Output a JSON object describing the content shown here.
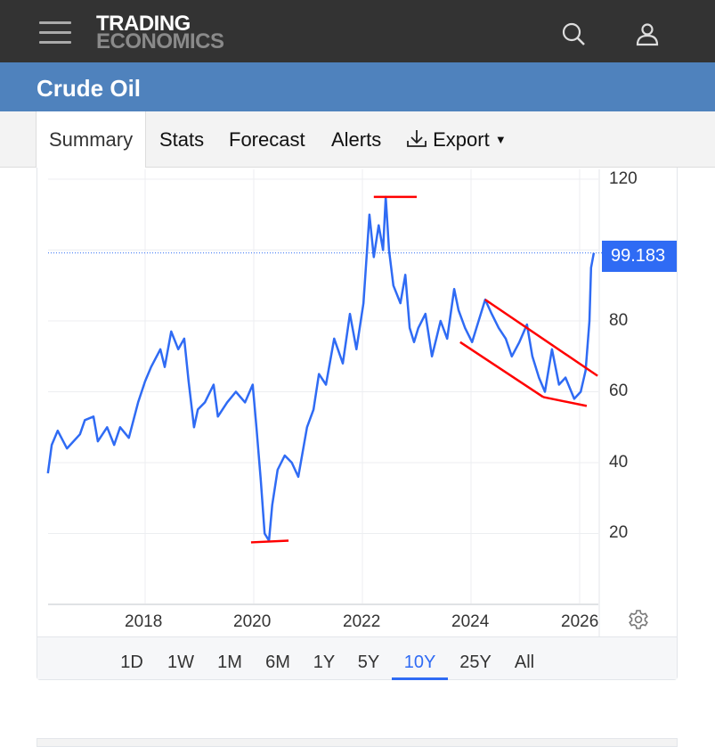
{
  "header": {
    "logo_line1": "TRADING",
    "logo_line2": "ECONOMICS",
    "menu_icon": "hamburger-icon",
    "search_icon": "search-icon",
    "user_icon": "user-icon"
  },
  "title": "Crude Oil",
  "tabs": [
    {
      "label": "Summary",
      "active": true
    },
    {
      "label": "Stats"
    },
    {
      "label": "Forecast"
    },
    {
      "label": "Alerts"
    },
    {
      "label": "Export",
      "icon": "download-icon"
    }
  ],
  "ranges": [
    "1D",
    "1W",
    "1M",
    "6M",
    "1Y",
    "5Y",
    "10Y",
    "25Y",
    "All"
  ],
  "active_range": "10Y",
  "colors": {
    "line": "#2f6bf4",
    "trend": "#ff0000",
    "header": "#333333",
    "titlebar": "#4f82bd"
  },
  "chart_data": {
    "type": "line",
    "title": "Crude Oil",
    "current_value": "99.183",
    "ylim": [
      0,
      120
    ],
    "yticks": [
      "20",
      "40",
      "60",
      "80",
      "100",
      "120"
    ],
    "xticks": [
      "2018",
      "2020",
      "2022",
      "2024",
      "2026"
    ],
    "xlim": [
      2016.21,
      2026.35
    ],
    "grid": true,
    "series": [
      {
        "name": "Crude Oil",
        "points": [
          [
            2016.21,
            37
          ],
          [
            2016.28,
            45
          ],
          [
            2016.39,
            49
          ],
          [
            2016.56,
            44
          ],
          [
            2016.8,
            48
          ],
          [
            2016.89,
            52
          ],
          [
            2017.05,
            53
          ],
          [
            2017.13,
            46
          ],
          [
            2017.3,
            50
          ],
          [
            2017.43,
            45
          ],
          [
            2017.54,
            50
          ],
          [
            2017.7,
            47
          ],
          [
            2017.87,
            57
          ],
          [
            2018.0,
            63
          ],
          [
            2018.11,
            67
          ],
          [
            2018.28,
            72
          ],
          [
            2018.36,
            67
          ],
          [
            2018.48,
            77
          ],
          [
            2018.61,
            72
          ],
          [
            2018.72,
            75
          ],
          [
            2018.8,
            63
          ],
          [
            2018.9,
            50
          ],
          [
            2018.97,
            55
          ],
          [
            2019.1,
            57
          ],
          [
            2019.26,
            62
          ],
          [
            2019.34,
            53
          ],
          [
            2019.51,
            57
          ],
          [
            2019.67,
            60
          ],
          [
            2019.84,
            57
          ],
          [
            2019.98,
            62
          ],
          [
            2020.05,
            50
          ],
          [
            2020.13,
            35
          ],
          [
            2020.2,
            20
          ],
          [
            2020.28,
            18
          ],
          [
            2020.34,
            28
          ],
          [
            2020.44,
            38
          ],
          [
            2020.57,
            42
          ],
          [
            2020.7,
            40
          ],
          [
            2020.82,
            36
          ],
          [
            2020.98,
            50
          ],
          [
            2021.1,
            55
          ],
          [
            2021.2,
            65
          ],
          [
            2021.33,
            62
          ],
          [
            2021.48,
            75
          ],
          [
            2021.64,
            68
          ],
          [
            2021.77,
            82
          ],
          [
            2021.89,
            72
          ],
          [
            2022.02,
            85
          ],
          [
            2022.13,
            110
          ],
          [
            2022.21,
            98
          ],
          [
            2022.3,
            107
          ],
          [
            2022.38,
            100
          ],
          [
            2022.43,
            115
          ],
          [
            2022.49,
            100
          ],
          [
            2022.57,
            90
          ],
          [
            2022.7,
            85
          ],
          [
            2022.79,
            93
          ],
          [
            2022.87,
            78
          ],
          [
            2022.95,
            74
          ],
          [
            2023.03,
            78
          ],
          [
            2023.16,
            82
          ],
          [
            2023.28,
            70
          ],
          [
            2023.36,
            75
          ],
          [
            2023.44,
            80
          ],
          [
            2023.56,
            75
          ],
          [
            2023.69,
            89
          ],
          [
            2023.77,
            83
          ],
          [
            2023.89,
            78
          ],
          [
            2024.02,
            74
          ],
          [
            2024.1,
            78
          ],
          [
            2024.26,
            86
          ],
          [
            2024.38,
            82
          ],
          [
            2024.51,
            78
          ],
          [
            2024.64,
            75
          ],
          [
            2024.75,
            70
          ],
          [
            2024.89,
            74
          ],
          [
            2025.03,
            79
          ],
          [
            2025.13,
            70
          ],
          [
            2025.25,
            64
          ],
          [
            2025.36,
            60
          ],
          [
            2025.49,
            72
          ],
          [
            2025.62,
            62
          ],
          [
            2025.74,
            64
          ],
          [
            2025.9,
            58
          ],
          [
            2026.02,
            60
          ],
          [
            2026.11,
            66
          ],
          [
            2026.18,
            80
          ],
          [
            2026.21,
            95
          ],
          [
            2026.26,
            99.183
          ]
        ]
      }
    ],
    "annotations": [
      {
        "type": "hline",
        "from": [
          2019.95,
          17.5
        ],
        "to": [
          2020.64,
          18
        ]
      },
      {
        "type": "hline",
        "from": [
          2022.21,
          115
        ],
        "to": [
          2023.0,
          115
        ]
      },
      {
        "type": "trendline",
        "from": [
          2023.8,
          74
        ],
        "to": [
          2025.33,
          58.5
        ]
      },
      {
        "type": "trendline",
        "from": [
          2024.26,
          86
        ],
        "to": [
          2026.33,
          64.5
        ]
      },
      {
        "type": "trendline",
        "from": [
          2025.33,
          58.5
        ],
        "to": [
          2026.13,
          56
        ]
      }
    ]
  }
}
